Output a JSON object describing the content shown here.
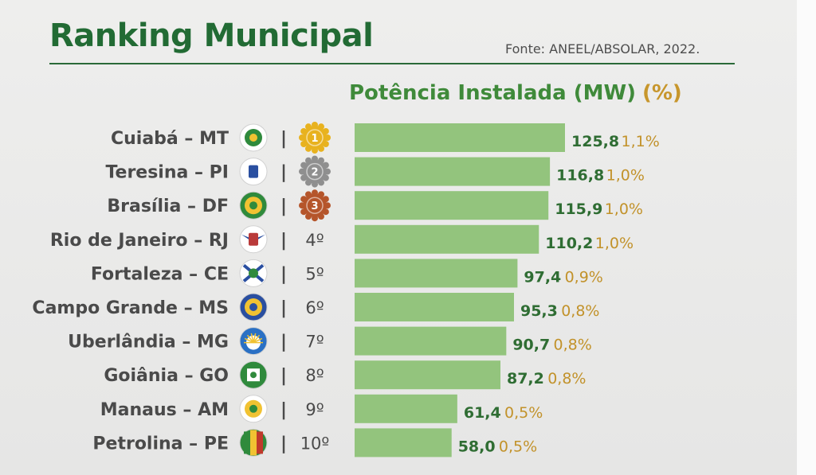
{
  "title": "Ranking Municipal",
  "source": "Fonte: ANEEL/ABSOLAR, 2022.",
  "column_header": "Potência Instalada (MW)",
  "percent_header": "(%)",
  "colors": {
    "title": "#226b34",
    "bar": "#93c47d",
    "value": "#2f6d33",
    "percent": "#c2922a",
    "gold": "#e8b21f",
    "silver": "#8f8f8f",
    "bronze": "#b5552b"
  },
  "chart_data": {
    "type": "bar",
    "orientation": "horizontal",
    "categories": [
      "Cuiabá – MT",
      "Teresina – PI",
      "Brasília – DF",
      "Rio de Janeiro – RJ",
      "Fortaleza – CE",
      "Campo Grande – MS",
      "Uberlândia – MG",
      "Goiânia – GO",
      "Manaus – AM",
      "Petrolina – PE"
    ],
    "series": [
      {
        "values": [
          125.8,
          116.8,
          115.9,
          110.2,
          97.4,
          95.3,
          90.7,
          87.2,
          61.4,
          58.0
        ]
      }
    ],
    "value_labels": [
      "125,8",
      "116,8",
      "115,9",
      "110,2",
      "97,4",
      "95,3",
      "90,7",
      "87,2",
      "61,4",
      "58,0"
    ],
    "percent_labels": [
      "1,1%",
      "1,0%",
      "1,0%",
      "1,0%",
      "0,9%",
      "0,8%",
      "0,8%",
      "0,8%",
      "0,5%",
      "0,5%"
    ],
    "rank_labels": [
      "1",
      "2",
      "3",
      "4º",
      "5º",
      "6º",
      "7º",
      "8º",
      "9º",
      "10º"
    ],
    "rank_medals": [
      "gold",
      "silver",
      "bronze",
      null,
      null,
      null,
      null,
      null,
      null,
      null
    ],
    "flag_icons": [
      "cuiaba-flag-icon",
      "teresina-flag-icon",
      "brasilia-flag-icon",
      "rio-de-janeiro-flag-icon",
      "fortaleza-flag-icon",
      "campo-grande-flag-icon",
      "uberlandia-flag-icon",
      "goiania-flag-icon",
      "manaus-flag-icon",
      "petrolina-flag-icon"
    ],
    "xlim": [
      0,
      125.8
    ]
  }
}
